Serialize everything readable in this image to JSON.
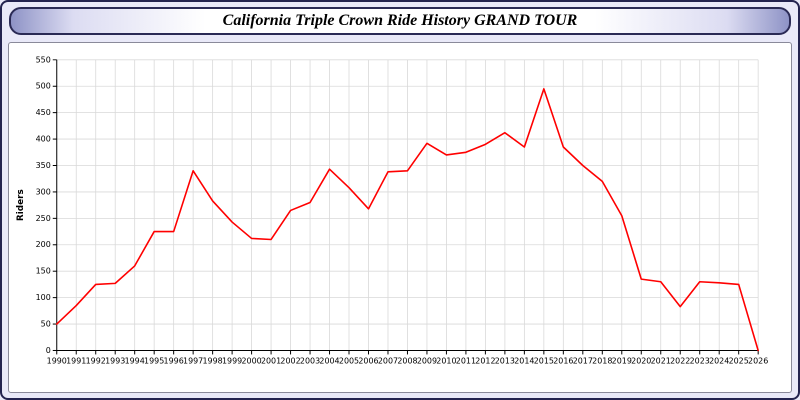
{
  "window": {
    "title": "California Triple Crown Ride History GRAND TOUR"
  },
  "colors": {
    "line": "#ff0000",
    "grid": "#d9d9d9",
    "axis": "#000000",
    "page_background": "#e9e9f8",
    "title_bar_edge": "#8e93c6",
    "panel_background": "#ffffff"
  },
  "chart_data": {
    "type": "line",
    "title": "California Triple Crown Ride History GRAND TOUR",
    "xlabel": "",
    "ylabel": "Riders",
    "grid": true,
    "legend": "none",
    "ylim": [
      0,
      550
    ],
    "yticks": [
      0,
      50,
      100,
      150,
      200,
      250,
      300,
      350,
      400,
      450,
      500,
      550
    ],
    "x": [
      1990,
      1991,
      1992,
      1993,
      1994,
      1995,
      1996,
      1997,
      1998,
      1999,
      2000,
      2001,
      2002,
      2003,
      2004,
      2005,
      2006,
      2007,
      2008,
      2009,
      2010,
      2011,
      2012,
      2013,
      2014,
      2015,
      2016,
      2017,
      2018,
      2019,
      2020,
      2021,
      2022,
      2023,
      2024,
      2025,
      2026
    ],
    "series": [
      {
        "name": "Riders",
        "color": "#ff0000",
        "values": [
          50,
          85,
          125,
          127,
          160,
          225,
          225,
          340,
          283,
          243,
          212,
          210,
          265,
          280,
          343,
          308,
          268,
          338,
          340,
          392,
          370,
          375,
          390,
          412,
          385,
          495,
          385,
          350,
          320,
          255,
          135,
          130,
          83,
          130,
          128,
          125,
          0
        ]
      }
    ]
  }
}
